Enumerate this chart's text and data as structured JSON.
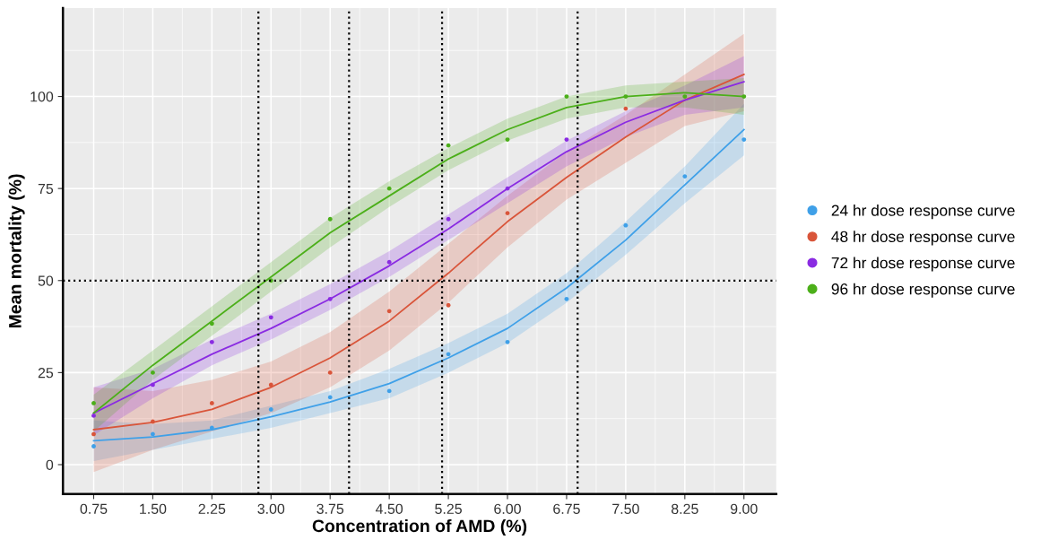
{
  "chart_data": {
    "type": "scatter",
    "xlabel": "Concentration of AMD (%)",
    "ylabel": "Mean mortality (%)",
    "x": [
      0.75,
      1.5,
      2.25,
      3.0,
      3.75,
      4.5,
      5.25,
      6.0,
      6.75,
      7.5,
      8.25,
      9.0
    ],
    "series": [
      {
        "name": "24 hr dose response curve",
        "marker": "circle",
        "color": "#3fa0e8",
        "values": [
          5,
          8.3,
          10,
          15,
          18.3,
          20,
          30,
          33.3,
          45,
          65,
          78.3,
          88.3
        ]
      },
      {
        "name": "48 hr dose response curve",
        "marker": "circle",
        "color": "#d9553a",
        "values": [
          8.3,
          11.7,
          16.7,
          21.7,
          25,
          41.7,
          43.3,
          68.3,
          null,
          96.7,
          null,
          null
        ]
      },
      {
        "name": "72 hr dose response curve",
        "marker": "circle",
        "color": "#8a2be2",
        "values": [
          13.3,
          21.7,
          33.3,
          40,
          45,
          55,
          66.7,
          75,
          88.3,
          null,
          null,
          null
        ]
      },
      {
        "name": "96 hr dose response curve",
        "marker": "circle",
        "color": "#4caf1a",
        "values": [
          16.7,
          25,
          38.3,
          50,
          66.7,
          75,
          86.7,
          88.3,
          100,
          100,
          100,
          100
        ]
      },
      {
        "type": "line",
        "color": "#3fa0e8",
        "values": [
          6.5,
          7.5,
          9.5,
          13,
          17,
          22,
          29,
          37,
          48,
          61,
          76,
          91
        ],
        "lower": [
          1,
          4,
          7,
          10,
          14,
          18,
          25,
          33,
          44,
          57,
          71,
          84
        ],
        "upper": [
          12,
          11,
          12,
          16,
          20,
          26,
          33,
          41,
          52,
          66,
          81,
          98
        ]
      },
      {
        "type": "line",
        "color": "#d9553a",
        "values": [
          9.5,
          11.5,
          15,
          21,
          29,
          39,
          52,
          66,
          78,
          89,
          99,
          106
        ],
        "lower": [
          -2,
          4,
          9,
          14,
          21,
          31,
          44,
          59,
          72,
          82,
          92,
          96
        ],
        "upper": [
          21,
          20,
          23,
          28,
          36,
          47,
          60,
          73,
          85,
          95,
          106,
          117
        ]
      },
      {
        "type": "line",
        "color": "#8a2be2",
        "values": [
          14,
          22,
          30,
          37,
          45,
          54,
          64,
          75,
          85,
          93,
          99,
          104
        ],
        "lower": [
          8,
          18,
          27,
          34,
          42,
          51,
          61,
          71,
          81,
          89,
          95,
          97
        ],
        "upper": [
          21,
          26,
          34,
          41,
          49,
          58,
          68,
          78,
          88,
          96,
          103,
          111
        ]
      },
      {
        "type": "line",
        "color": "#4caf1a",
        "values": [
          14,
          27,
          39,
          51,
          63,
          73,
          83,
          91,
          97,
          100,
          101,
          100
        ],
        "lower": [
          9,
          23,
          35,
          47,
          59,
          70,
          80,
          88,
          94,
          97,
          97,
          95
        ],
        "upper": [
          19,
          31,
          43,
          55,
          67,
          77,
          86,
          94,
          100,
          103,
          104,
          105
        ]
      }
    ],
    "xlim": [
      0.36,
      9.41
    ],
    "ylim": [
      -8,
      124
    ],
    "xticks": [
      {
        "value": 0.75,
        "label": "0.75"
      },
      {
        "value": 1.5,
        "label": "1.50"
      },
      {
        "value": 2.25,
        "label": "2.25"
      },
      {
        "value": 3.0,
        "label": "3.00"
      },
      {
        "value": 3.75,
        "label": "3.75"
      },
      {
        "value": 4.5,
        "label": "4.50"
      },
      {
        "value": 5.25,
        "label": "5.25"
      },
      {
        "value": 6.0,
        "label": "6.00"
      },
      {
        "value": 6.75,
        "label": "6.75"
      },
      {
        "value": 7.5,
        "label": "7.50"
      },
      {
        "value": 8.25,
        "label": "8.25"
      },
      {
        "value": 9.0,
        "label": "9.00"
      }
    ],
    "yticks": [
      0,
      25,
      50,
      75,
      100
    ],
    "ref_lines": [
      {
        "axis": "y",
        "value": 50,
        "line_style": "dotted",
        "color": "#000000"
      },
      {
        "axis": "x",
        "value": 2.84,
        "line_style": "dotted",
        "color": "#000000"
      },
      {
        "axis": "x",
        "value": 3.99,
        "line_style": "dotted",
        "color": "#000000"
      },
      {
        "axis": "x",
        "value": 5.17,
        "line_style": "dotted",
        "color": "#000000"
      },
      {
        "axis": "x",
        "value": 6.89,
        "line_style": "dotted",
        "color": "#000000"
      }
    ],
    "grid": true,
    "legend": "right"
  }
}
